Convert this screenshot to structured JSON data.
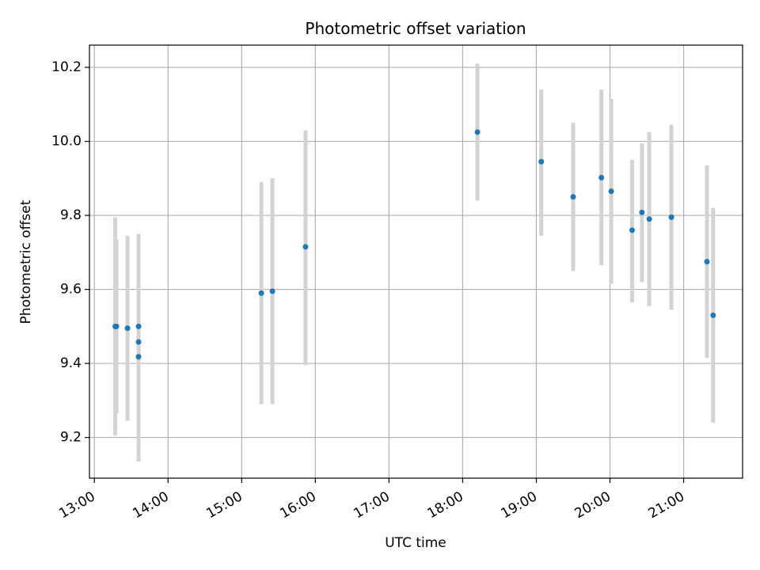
{
  "chart_data": {
    "type": "scatter",
    "title": "Photometric offset variation",
    "xlabel": "UTC time",
    "ylabel": "Photometric offset",
    "x_unit": "UTC hours",
    "xlim": [
      "12:56",
      "21:48"
    ],
    "ylim": [
      9.09,
      10.26
    ],
    "x_ticks": [
      "13:00",
      "14:00",
      "15:00",
      "16:00",
      "17:00",
      "18:00",
      "19:00",
      "20:00",
      "21:00"
    ],
    "y_ticks": [
      9.2,
      9.4,
      9.6,
      9.8,
      10.0,
      10.2
    ],
    "grid": true,
    "error_bar_color": "#d3d3d3",
    "point_color": "#1f77b4",
    "series": [
      {
        "points": [
          {
            "x": "13:17",
            "y": 9.5,
            "err_low": 9.205,
            "err_high": 9.795
          },
          {
            "x": "13:18",
            "y": 9.5,
            "err_low": 9.265,
            "err_high": 9.735
          },
          {
            "x": "13:27",
            "y": 9.495,
            "err_low": 9.245,
            "err_high": 9.745
          },
          {
            "x": "13:36",
            "y": 9.5,
            "err_low": 9.25,
            "err_high": 9.75
          },
          {
            "x": "13:36",
            "y": 9.458,
            "err_low": 9.215,
            "err_high": 9.7
          },
          {
            "x": "13:36",
            "y": 9.418,
            "err_low": 9.135,
            "err_high": 9.7
          },
          {
            "x": "15:16",
            "y": 9.59,
            "err_low": 9.29,
            "err_high": 9.89
          },
          {
            "x": "15:25",
            "y": 9.595,
            "err_low": 9.29,
            "err_high": 9.9
          },
          {
            "x": "15:52",
            "y": 9.715,
            "err_low": 9.395,
            "err_high": 10.03
          },
          {
            "x": "18:12",
            "y": 10.025,
            "err_low": 9.84,
            "err_high": 10.21
          },
          {
            "x": "19:04",
            "y": 9.945,
            "err_low": 9.745,
            "err_high": 10.14
          },
          {
            "x": "19:30",
            "y": 9.85,
            "err_low": 9.65,
            "err_high": 10.05
          },
          {
            "x": "19:53",
            "y": 9.902,
            "err_low": 9.665,
            "err_high": 10.14
          },
          {
            "x": "20:01",
            "y": 9.865,
            "err_low": 9.615,
            "err_high": 10.115
          },
          {
            "x": "20:18",
            "y": 9.76,
            "err_low": 9.565,
            "err_high": 9.95
          },
          {
            "x": "20:26",
            "y": 9.808,
            "err_low": 9.62,
            "err_high": 9.995
          },
          {
            "x": "20:32",
            "y": 9.79,
            "err_low": 9.555,
            "err_high": 10.025
          },
          {
            "x": "20:50",
            "y": 9.795,
            "err_low": 9.545,
            "err_high": 10.045
          },
          {
            "x": "21:19",
            "y": 9.675,
            "err_low": 9.415,
            "err_high": 9.935
          },
          {
            "x": "21:24",
            "y": 9.53,
            "err_low": 9.24,
            "err_high": 9.82
          }
        ]
      }
    ]
  }
}
